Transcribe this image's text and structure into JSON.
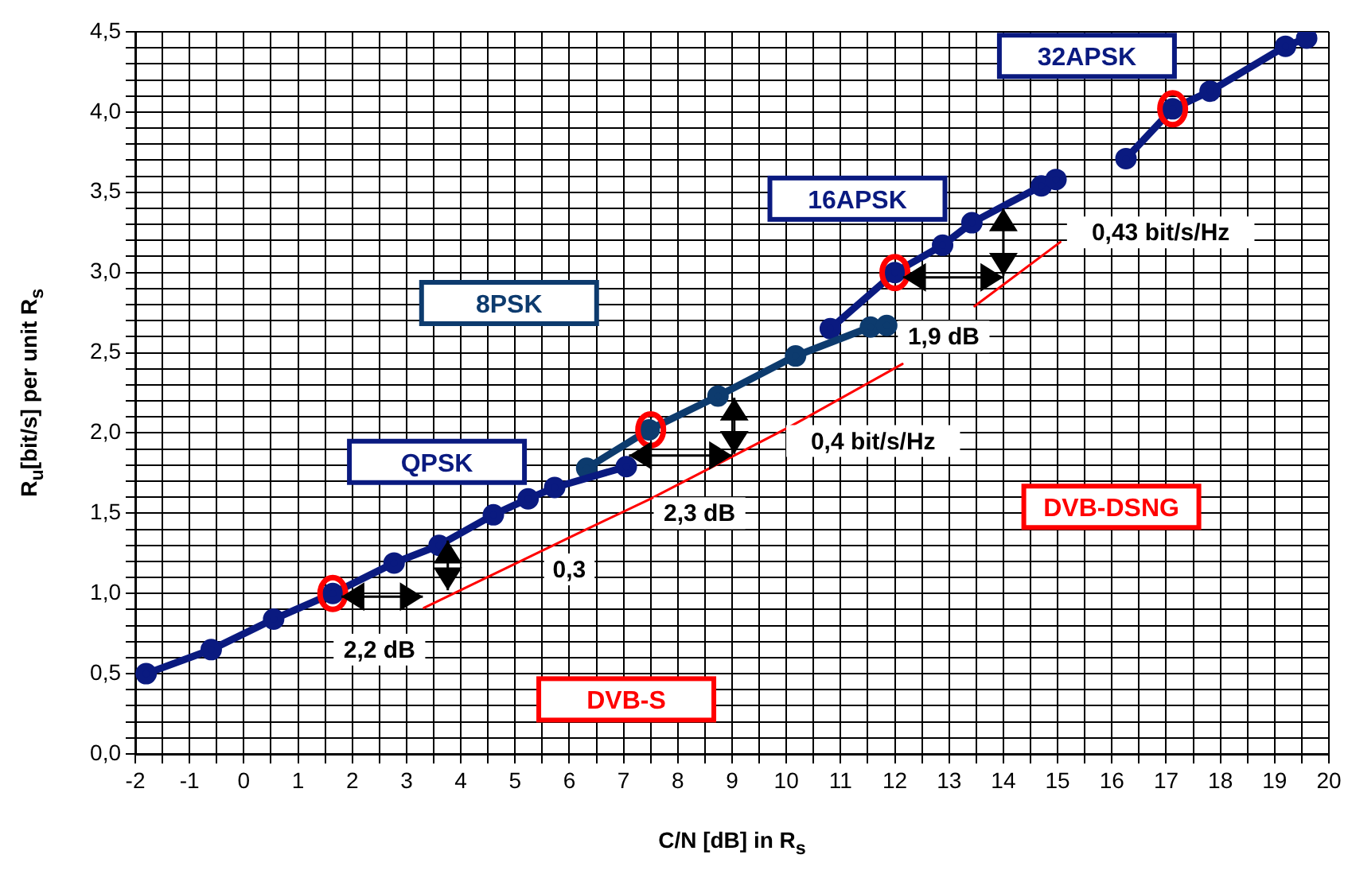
{
  "chart_data": {
    "type": "line",
    "xlabel": "C/N [dB] in R$_{s}$",
    "ylabel": "R$_{u}$[bit/s] per unit R$_{s}$",
    "xlim": [
      -2,
      20
    ],
    "ylim": [
      0,
      4.5
    ],
    "xticks": [
      -2,
      {
        "value": -1.5,
        "label": null
      },
      -1,
      {
        "value": -0.5,
        "label": null
      },
      0,
      {
        "value": 0.5,
        "label": null
      },
      1,
      {
        "value": 1.5,
        "label": null
      },
      2,
      {
        "value": 2.5,
        "label": null
      },
      3,
      {
        "value": 3.5,
        "label": null
      },
      4,
      {
        "value": 4.5,
        "label": null
      },
      5,
      {
        "value": 5.5,
        "label": null
      },
      6,
      {
        "value": 6.5,
        "label": null
      },
      7,
      {
        "value": 7.5,
        "label": null
      },
      8,
      {
        "value": 8.5,
        "label": null
      },
      9,
      {
        "value": 9.5,
        "label": null
      },
      10,
      {
        "value": 10.5,
        "label": null
      },
      11,
      {
        "value": 11.5,
        "label": null
      },
      12,
      {
        "value": 12.5,
        "label": null
      },
      13,
      {
        "value": 13.5,
        "label": null
      },
      14,
      {
        "value": 14.5,
        "label": null
      },
      15,
      {
        "value": 15.5,
        "label": null
      },
      16,
      {
        "value": 16.5,
        "label": null
      },
      17,
      {
        "value": 17.5,
        "label": null
      },
      18,
      {
        "value": 18.5,
        "label": null
      },
      19,
      {
        "value": 19.5,
        "label": null
      },
      20
    ],
    "yticks": [
      {
        "value": 0,
        "label": "0,0"
      },
      {
        "value": 0.1,
        "label": null
      },
      {
        "value": 0.2,
        "label": null
      },
      {
        "value": 0.3,
        "label": null
      },
      {
        "value": 0.4,
        "label": null
      },
      {
        "value": 0.5,
        "label": "0,5"
      },
      {
        "value": 0.6,
        "label": null
      },
      {
        "value": 0.7,
        "label": null
      },
      {
        "value": 0.8,
        "label": null
      },
      {
        "value": 0.9,
        "label": null
      },
      {
        "value": 1,
        "label": "1,0"
      },
      {
        "value": 1.1,
        "label": null
      },
      {
        "value": 1.2,
        "label": null
      },
      {
        "value": 1.3,
        "label": null
      },
      {
        "value": 1.4,
        "label": null
      },
      {
        "value": 1.5,
        "label": "1,5"
      },
      {
        "value": 1.6,
        "label": null
      },
      {
        "value": 1.7,
        "label": null
      },
      {
        "value": 1.8,
        "label": null
      },
      {
        "value": 1.9,
        "label": null
      },
      {
        "value": 2,
        "label": "2,0"
      },
      {
        "value": 2.1,
        "label": null
      },
      {
        "value": 2.2,
        "label": null
      },
      {
        "value": 2.3,
        "label": null
      },
      {
        "value": 2.4,
        "label": null
      },
      {
        "value": 2.5,
        "label": "2,5"
      },
      {
        "value": 2.6,
        "label": null
      },
      {
        "value": 2.7,
        "label": null
      },
      {
        "value": 2.8,
        "label": null
      },
      {
        "value": 2.9,
        "label": null
      },
      {
        "value": 3,
        "label": "3,0"
      },
      {
        "value": 3.1,
        "label": null
      },
      {
        "value": 3.2,
        "label": null
      },
      {
        "value": 3.3,
        "label": null
      },
      {
        "value": 3.4,
        "label": null
      },
      {
        "value": 3.5,
        "label": "3,5"
      },
      {
        "value": 3.6,
        "label": null
      },
      {
        "value": 3.7,
        "label": null
      },
      {
        "value": 3.8,
        "label": null
      },
      {
        "value": 3.9,
        "label": null
      },
      {
        "value": 4,
        "label": "4,0"
      },
      {
        "value": 4.1,
        "label": null
      },
      {
        "value": 4.2,
        "label": null
      },
      {
        "value": 4.3,
        "label": null
      },
      {
        "value": 4.4,
        "label": null
      },
      {
        "value": 4.5,
        "label": "4,5"
      }
    ],
    "grid": true,
    "marker": "circle",
    "series": [
      {
        "name": "QPSK",
        "color": "#0a1a80",
        "x": [
          -1.8,
          -0.6,
          0.55,
          1.64,
          2.77,
          3.6,
          4.6,
          5.24,
          5.73,
          7.05
        ],
        "values": [
          0.5,
          0.65,
          0.84,
          1.0,
          1.19,
          1.3,
          1.49,
          1.59,
          1.66,
          1.79
        ]
      },
      {
        "name": "8PSK",
        "color": "#0d3b6e",
        "x": [
          6.32,
          7.47,
          8.74,
          10.17,
          11.55,
          11.85
        ],
        "values": [
          1.78,
          2.02,
          2.23,
          2.48,
          2.66,
          2.67
        ]
      },
      {
        "name": "16APSK",
        "color": "#0a1a80",
        "x": [
          10.81,
          12.0,
          12.88,
          13.42,
          14.7,
          14.97
        ],
        "values": [
          2.65,
          3.0,
          3.17,
          3.31,
          3.54,
          3.58
        ]
      },
      {
        "name": "32APSK",
        "color": "#0a1a80",
        "x": [
          16.26,
          17.12,
          17.81,
          19.2,
          19.59
        ],
        "values": [
          3.71,
          4.02,
          4.13,
          4.41,
          4.46
        ]
      },
      {
        "name": "DVB-S",
        "color": "#ff0000",
        "marker": "none",
        "x": [
          3.32,
          6.13,
          7.5,
          10.07,
          12.14
        ],
        "values": [
          0.91,
          1.37,
          1.59,
          2.04,
          2.43
        ]
      },
      {
        "name": "DVB-DSNG",
        "color": "#ff0000",
        "marker": "none",
        "x": [
          13.47,
          15.05
        ],
        "values": [
          2.79,
          3.19
        ]
      }
    ],
    "annotations": [
      "2,2 dB",
      "0,3",
      "2,3 dB",
      "0,4 bit/s/Hz",
      {
        "text": "1,9 dB",
        "x": 12.0,
        "y": 3.0
      },
      "0,43 bit/s/Hz"
    ]
  }
}
